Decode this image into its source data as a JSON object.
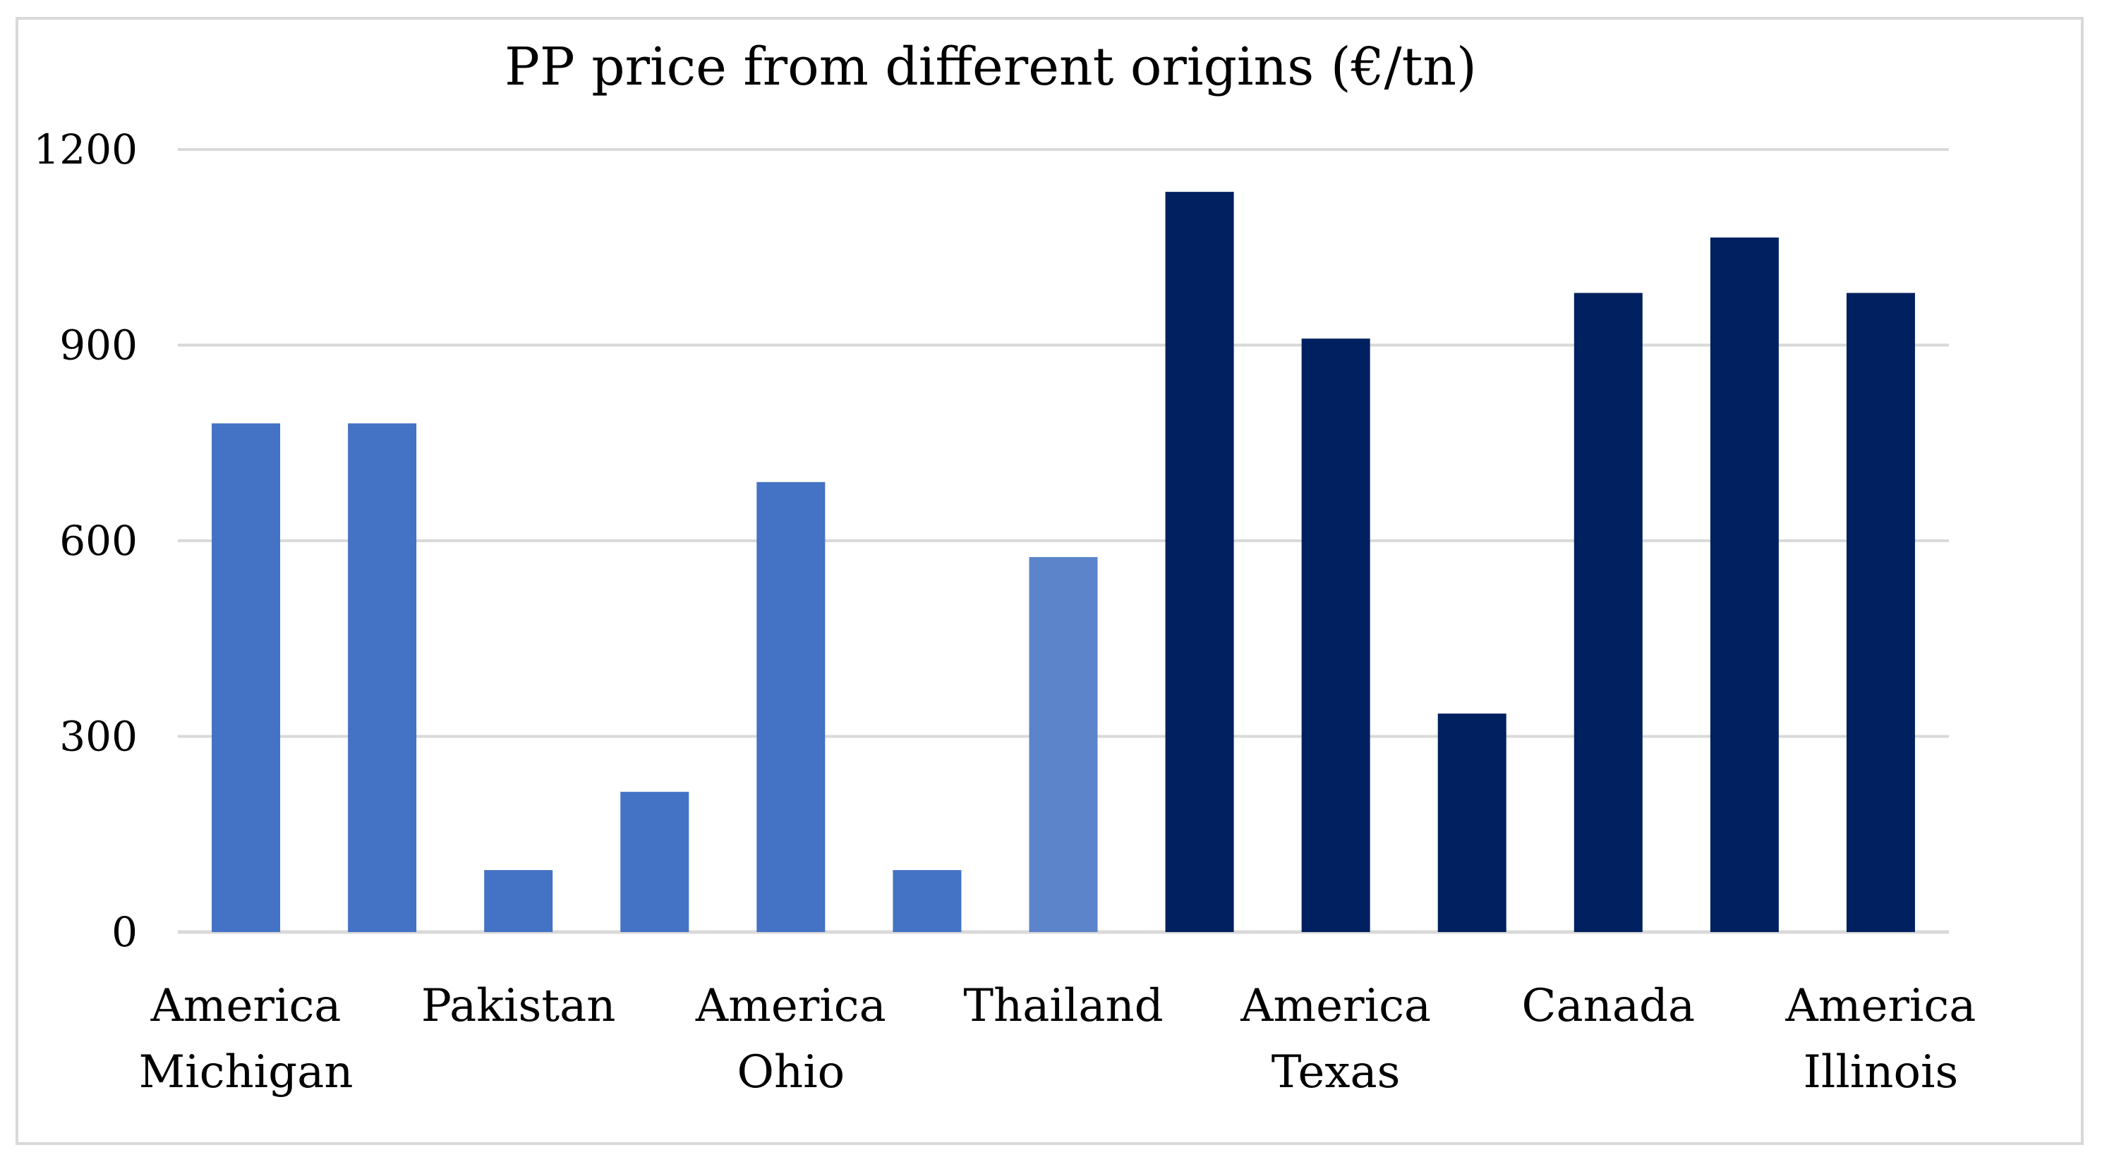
{
  "chart_data": {
    "type": "bar",
    "title": "PP price from different origins (€/tn)",
    "xlabel": "",
    "ylabel": "",
    "ylim": [
      0,
      1200
    ],
    "yticks": [
      0,
      300,
      600,
      900,
      1200
    ],
    "grid": true,
    "legend": "none",
    "categories": [
      "America Michigan",
      "",
      "Pakistan",
      "",
      "America Ohio",
      "",
      "Thailand",
      "",
      "America Texas",
      "",
      "Canada",
      "",
      "America Illinois"
    ],
    "category_label_lines": [
      [
        "America",
        "Michigan"
      ],
      [
        "Pakistan"
      ],
      [
        "America",
        "Ohio"
      ],
      [
        "Thailand"
      ],
      [
        "America",
        "Texas"
      ],
      [
        "Canada"
      ],
      [
        "America",
        "Illinois"
      ]
    ],
    "values": [
      780,
      780,
      95,
      215,
      690,
      95,
      575,
      1135,
      910,
      335,
      980,
      1065,
      980
    ],
    "bar_colors": [
      "#4472c4",
      "#4472c4",
      "#4472c4",
      "#4472c4",
      "#4472c4",
      "#4472c4",
      "#5b84cb",
      "#002060",
      "#002060",
      "#002060",
      "#002060",
      "#002060",
      "#002060"
    ],
    "gridline_color": "#d9d9d9"
  }
}
